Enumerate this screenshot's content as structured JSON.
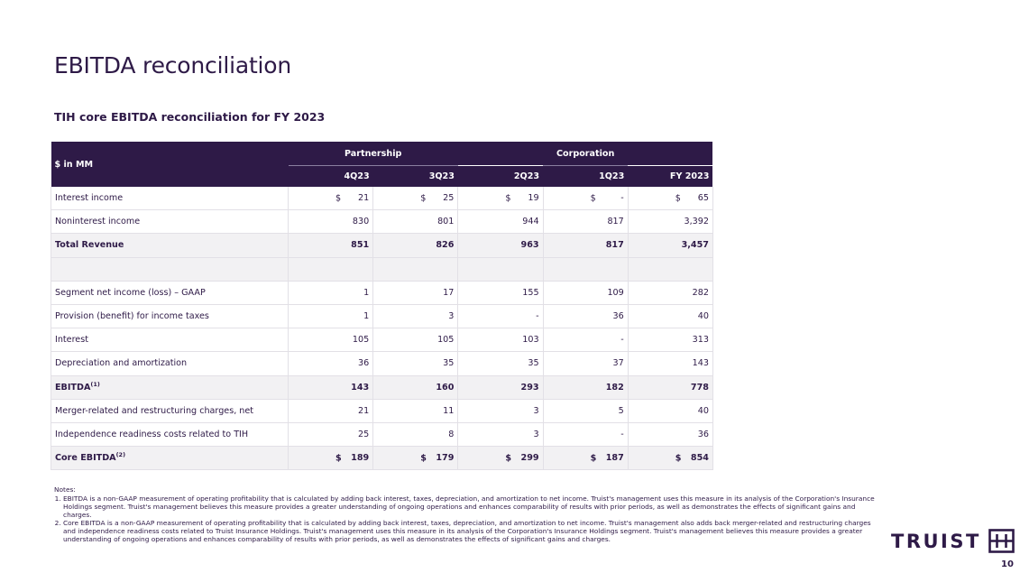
{
  "slide": {
    "title": "EBITDA reconciliation",
    "subtitle": "TIH core EBITDA reconciliation for FY 2023",
    "page_number": "10"
  },
  "table": {
    "unit_label": "$ in MM",
    "group_headers": [
      "Partnership",
      "Corporation"
    ],
    "columns": [
      "4Q23",
      "3Q23",
      "2Q23",
      "1Q23",
      "FY 2023"
    ],
    "currency_symbol": "$",
    "rows": [
      {
        "label": "Interest income",
        "values": [
          "21",
          "25",
          "19",
          "-",
          "65"
        ]
      },
      {
        "label": "Noninterest income",
        "values": [
          "830",
          "801",
          "944",
          "817",
          "3,392"
        ]
      },
      {
        "label": "Total Revenue",
        "values": [
          "851",
          "826",
          "963",
          "817",
          "3,457"
        ]
      },
      {
        "label": "",
        "values": [
          "",
          "",
          "",
          "",
          ""
        ]
      },
      {
        "label": "Segment net income (loss) – GAAP",
        "values": [
          "1",
          "17",
          "155",
          "109",
          "282"
        ]
      },
      {
        "label": "Provision (benefit) for income taxes",
        "values": [
          "1",
          "3",
          "-",
          "36",
          "40"
        ]
      },
      {
        "label": "Interest",
        "values": [
          "105",
          "105",
          "103",
          "-",
          "313"
        ]
      },
      {
        "label": "Depreciation and amortization",
        "values": [
          "36",
          "35",
          "35",
          "37",
          "143"
        ]
      },
      {
        "label": "EBITDA",
        "footnote": "(1)",
        "values": [
          "143",
          "160",
          "293",
          "182",
          "778"
        ]
      },
      {
        "label": "Merger-related and restructuring charges, net",
        "values": [
          "21",
          "11",
          "3",
          "5",
          "40"
        ]
      },
      {
        "label": "Independence readiness costs related to TIH",
        "values": [
          "25",
          "8",
          "3",
          "-",
          "36"
        ]
      },
      {
        "label": "Core EBITDA",
        "footnote": "(2)",
        "values": [
          "189",
          "179",
          "299",
          "187",
          "854"
        ]
      }
    ]
  },
  "notes": {
    "heading": "Notes:",
    "items": [
      "EBITDA is a non-GAAP measurement of operating profitability that is calculated by adding back interest, taxes, depreciation, and amortization to net income. Truist's management uses this measure in its analysis of the Corporation's Insurance Holdings segment. Truist's management believes this measure provides a greater understanding of ongoing operations and enhances comparability of results with prior periods, as well as demonstrates the effects of significant gains and charges.",
      "Core EBITDA is a non-GAAP measurement of operating profitability that is calculated by adding back interest, taxes, depreciation, and amortization to net income. Truist's management also adds back merger-related and restructuring charges and independence readiness costs related to Truist Insurance Holdings. Truist's management uses this measure in its analysis of the Corporation's Insurance Holdings segment. Truist's management believes this measure provides a greater understanding of ongoing operations and enhances comparability of results with prior periods, as well as demonstrates the effects of significant gains and charges."
    ]
  },
  "logo": {
    "text": "TRUIST",
    "icon": "truist-h-mark-icon"
  },
  "colors": {
    "brand": "#2e1a47",
    "shade": "#f2f1f3",
    "grid": "#e2e0e6"
  }
}
